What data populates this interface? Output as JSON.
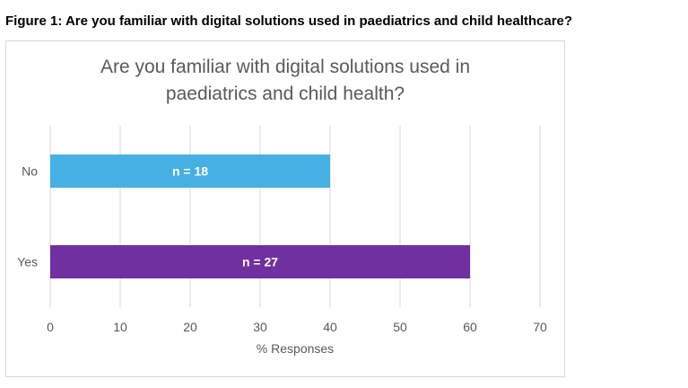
{
  "figure_caption": "Figure 1: Are you familiar with digital solutions used in paediatrics and child healthcare?",
  "chart_data": {
    "type": "bar",
    "orientation": "horizontal",
    "title": [
      "Are you familiar with digital solutions used in",
      "paediatrics and child health?"
    ],
    "categories": [
      "No",
      "Yes"
    ],
    "values": [
      40,
      60
    ],
    "data_labels": [
      "n = 18",
      "n = 27"
    ],
    "colors": [
      "#47b0e2",
      "#7030a0"
    ],
    "xlabel": "% Responses",
    "ylabel": "",
    "xlim": [
      0,
      70
    ],
    "xticks": [
      0,
      10,
      20,
      30,
      40,
      50,
      60,
      70
    ],
    "grid": true
  }
}
